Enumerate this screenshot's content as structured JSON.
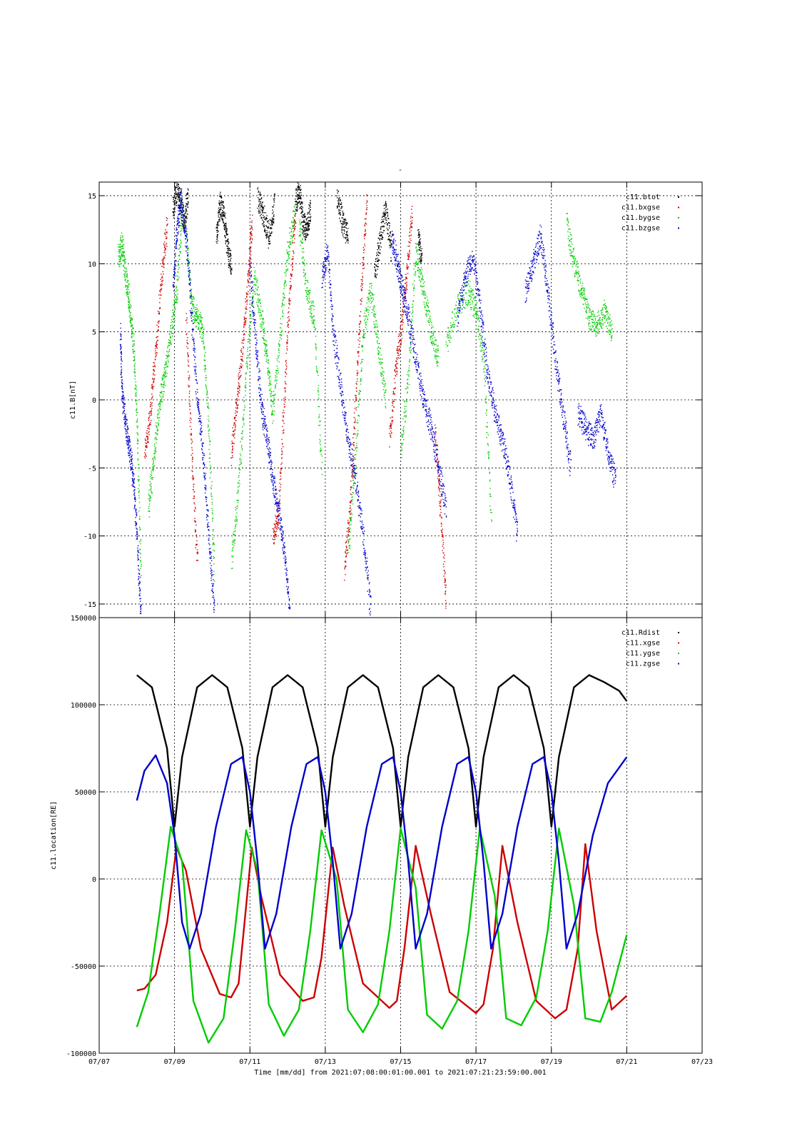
{
  "page_title": "-",
  "xaxis_caption": "Time [mm/dd]  from 2021:07:08:00:01:00.001  to  2021:07:21:23:59:00.001",
  "chart_data": [
    {
      "type": "scatter",
      "ylabel": "c11.B[nT]",
      "ylim": [
        -16,
        16
      ],
      "yticks": [
        -15,
        -10,
        -5,
        0,
        5,
        10,
        15
      ],
      "ytick_labels": [
        "-15",
        "-10",
        "-5",
        "0",
        "5",
        "10",
        "15"
      ],
      "grid": true,
      "legend_position": "top-right",
      "series": [
        {
          "name": "c11.btot",
          "color": "#000000",
          "segments": [
            {
              "x": [
                1.95,
                2.05,
                2.15,
                2.25,
                2.35
              ],
              "y": [
                14.0,
                15.5,
                14.5,
                13.0,
                15.0
              ]
            },
            {
              "x": [
                3.1,
                3.2,
                3.3,
                3.4,
                3.5
              ],
              "y": [
                12.0,
                14.5,
                13.5,
                11.0,
                10.0
              ]
            },
            {
              "x": [
                4.2,
                4.35,
                4.5,
                4.65
              ],
              "y": [
                15.0,
                13.5,
                12.0,
                14.5
              ]
            },
            {
              "x": [
                5.2,
                5.3,
                5.4,
                5.5,
                5.6
              ],
              "y": [
                14.5,
                15.5,
                13.0,
                12.5,
                14.0
              ]
            },
            {
              "x": [
                6.3,
                6.45,
                6.6
              ],
              "y": [
                15.0,
                13.0,
                12.0
              ]
            },
            {
              "x": [
                7.3,
                7.45,
                7.6,
                7.75
              ],
              "y": [
                9.0,
                12.0,
                14.0,
                11.0
              ]
            },
            {
              "x": [
                8.45,
                8.55
              ],
              "y": [
                12.0,
                10.5
              ]
            }
          ]
        },
        {
          "name": "c11.bxgse",
          "color": "#cc0000",
          "segments": [
            {
              "x": [
                1.2,
                1.35,
                1.5,
                1.65,
                1.8
              ],
              "y": [
                -4.0,
                -1.0,
                4.0,
                9.0,
                13.0
              ]
            },
            {
              "x": [
                2.3,
                2.45,
                2.6
              ],
              "y": [
                6.0,
                -4.0,
                -12.0
              ]
            },
            {
              "x": [
                3.5,
                3.65,
                3.8,
                3.95,
                4.05
              ],
              "y": [
                -4.0,
                0.0,
                4.0,
                9.0,
                13.0
              ]
            },
            {
              "x": [
                4.6,
                4.75,
                4.9,
                5.05,
                5.2
              ],
              "y": [
                -10.0,
                -8.5,
                0.0,
                8.0,
                14.0
              ]
            },
            {
              "x": [
                6.5,
                6.65,
                6.8,
                6.95,
                7.1
              ],
              "y": [
                -12.5,
                -8.0,
                0.0,
                8.0,
                15.0
              ]
            },
            {
              "x": [
                7.7,
                7.85,
                8.0,
                8.15,
                8.3
              ],
              "y": [
                -3.0,
                2.0,
                5.0,
                9.0,
                14.0
              ]
            },
            {
              "x": [
                8.9,
                9.05,
                9.2
              ],
              "y": [
                -2.0,
                -8.0,
                -15.0
              ]
            }
          ]
        },
        {
          "name": "c11.bygse",
          "color": "#00cc00",
          "segments": [
            {
              "x": [
                0.5,
                0.6,
                0.7,
                0.8,
                0.9,
                1.0,
                1.1
              ],
              "y": [
                10.5,
                11.5,
                9.0,
                7.0,
                4.0,
                -2.0,
                -13.0
              ]
            },
            {
              "x": [
                1.3,
                1.45,
                1.6,
                1.75,
                1.9,
                2.05,
                2.2
              ],
              "y": [
                -8.0,
                -4.0,
                0.0,
                2.0,
                5.0,
                8.0,
                14.0
              ]
            },
            {
              "x": [
                2.3,
                2.45,
                2.6,
                2.75,
                2.9,
                3.05
              ],
              "y": [
                12.0,
                7.0,
                6.0,
                5.0,
                -2.0,
                -13.0
              ]
            },
            {
              "x": [
                3.5,
                3.7,
                3.9,
                4.1,
                4.3
              ],
              "y": [
                -12.0,
                -6.0,
                2.0,
                9.0,
                6.0
              ]
            },
            {
              "x": [
                4.3,
                4.45,
                4.6,
                4.8,
                5.0,
                5.2
              ],
              "y": [
                6.0,
                3.0,
                -1.0,
                5.0,
                11.0,
                14.0
              ]
            },
            {
              "x": [
                5.3,
                5.5,
                5.7,
                5.9
              ],
              "y": [
                13.0,
                8.0,
                6.0,
                -5.0
              ]
            },
            {
              "x": [
                6.6,
                6.8,
                7.0,
                7.2,
                7.4,
                7.6
              ],
              "y": [
                -11.0,
                -4.0,
                5.0,
                8.0,
                4.0,
                0.0
              ]
            },
            {
              "x": [
                8.0,
                8.2,
                8.4,
                8.6,
                8.8,
                9.0
              ],
              "y": [
                -4.0,
                2.0,
                11.0,
                8.0,
                5.0,
                3.0
              ]
            },
            {
              "x": [
                9.2,
                9.5,
                9.8,
                10.0,
                10.2,
                10.4
              ],
              "y": [
                4.0,
                7.0,
                8.0,
                6.5,
                3.0,
                -9.0
              ]
            },
            {
              "x": [
                12.4,
                12.6,
                12.8,
                13.0,
                13.2,
                13.4,
                13.6
              ],
              "y": [
                13.0,
                10.0,
                8.0,
                6.0,
                5.5,
                6.5,
                5.0
              ]
            }
          ]
        },
        {
          "name": "c11.bzgse",
          "color": "#0000cc",
          "segments": [
            {
              "x": [
                0.55,
                0.6,
                0.7,
                0.8,
                0.9,
                1.0,
                1.1
              ],
              "y": [
                5.0,
                0.5,
                -2.0,
                -3.5,
                -6.0,
                -10.0,
                -16.0
              ]
            },
            {
              "x": [
                1.95,
                2.05,
                2.15,
                2.3,
                2.45,
                2.6,
                2.75,
                2.9,
                3.05
              ],
              "y": [
                8.0,
                12.0,
                15.0,
                12.0,
                6.0,
                0.0,
                -4.0,
                -10.0,
                -15.5
              ]
            },
            {
              "x": [
                4.0,
                4.15,
                4.3,
                4.45,
                4.6,
                4.75,
                4.9,
                5.05
              ],
              "y": [
                10.0,
                4.0,
                -0.5,
                -3.0,
                -6.0,
                -8.0,
                -11.0,
                -15.5
              ]
            },
            {
              "x": [
                5.9,
                6.05,
                6.2,
                6.4,
                6.6,
                6.8,
                7.0,
                7.2
              ],
              "y": [
                9.0,
                11.0,
                5.0,
                1.0,
                -3.0,
                -6.0,
                -10.0,
                -15.5
              ]
            },
            {
              "x": [
                7.75,
                7.9,
                8.05,
                8.2,
                8.4,
                8.6,
                8.8,
                9.0,
                9.2
              ],
              "y": [
                12.0,
                10.0,
                8.0,
                6.0,
                3.0,
                0.0,
                -2.0,
                -5.0,
                -8.0
              ]
            },
            {
              "x": [
                9.5,
                9.7,
                9.9,
                10.1,
                10.3,
                10.5,
                10.7,
                10.9,
                11.1
              ],
              "y": [
                6.0,
                9.0,
                10.5,
                7.0,
                2.0,
                -1.0,
                -3.0,
                -6.0,
                -10.0
              ]
            },
            {
              "x": [
                11.3,
                11.5,
                11.7,
                11.9,
                12.1,
                12.3,
                12.5
              ],
              "y": [
                8.0,
                10.0,
                12.0,
                8.0,
                3.0,
                -1.0,
                -5.0
              ]
            },
            {
              "x": [
                12.7,
                12.9,
                13.1,
                13.3,
                13.5,
                13.7
              ],
              "y": [
                -1.0,
                -2.0,
                -3.0,
                -1.0,
                -4.0,
                -6.0
              ]
            }
          ]
        }
      ]
    },
    {
      "type": "line",
      "ylabel": "c11.location[RE]",
      "ylim": [
        -100000,
        150000
      ],
      "yticks": [
        -100000,
        -50000,
        0,
        50000,
        100000,
        150000
      ],
      "ytick_labels": [
        "-100000",
        "-50000",
        "0",
        "50000",
        "100000",
        "150000"
      ],
      "xlim": [
        "07/07",
        "07/23"
      ],
      "xticks": [
        "07/07",
        "07/09",
        "07/11",
        "07/13",
        "07/15",
        "07/17",
        "07/19",
        "07/21",
        "07/23"
      ],
      "grid": true,
      "legend_position": "top-right",
      "series": [
        {
          "name": "c11.Rdist",
          "color": "#000000",
          "x": [
            1.0,
            1.4,
            1.8,
            2.0,
            2.2,
            2.6,
            3.0,
            3.4,
            3.8,
            4.0,
            4.2,
            4.6,
            5.0,
            5.4,
            5.8,
            6.0,
            6.2,
            6.6,
            7.0,
            7.4,
            7.8,
            8.0,
            8.2,
            8.6,
            9.0,
            9.4,
            9.8,
            10.0,
            10.2,
            10.6,
            11.0,
            11.4,
            11.8,
            12.0,
            12.2,
            12.6,
            13.0,
            13.4,
            13.8,
            14.0
          ],
          "y": [
            117000,
            110000,
            75000,
            30000,
            70000,
            110000,
            117000,
            110000,
            75000,
            30000,
            70000,
            110000,
            117000,
            110000,
            75000,
            30000,
            70000,
            110000,
            117000,
            110000,
            75000,
            30000,
            70000,
            110000,
            117000,
            110000,
            75000,
            30000,
            70000,
            110000,
            117000,
            110000,
            75000,
            30000,
            70000,
            110000,
            117000,
            113000,
            108000,
            102000
          ]
        },
        {
          "name": "c11.xgse",
          "color": "#cc0000",
          "x": [
            1.0,
            1.2,
            1.5,
            1.8,
            2.05,
            2.3,
            2.7,
            3.2,
            3.5,
            3.7,
            4.05,
            4.3,
            4.8,
            5.4,
            5.7,
            5.9,
            6.2,
            6.5,
            7.0,
            7.7,
            7.9,
            8.1,
            8.4,
            8.8,
            9.3,
            10.0,
            10.2,
            10.45,
            10.7,
            11.1,
            11.6,
            12.1,
            12.4,
            12.7,
            12.9,
            13.2,
            13.6,
            14.0
          ],
          "y": [
            -64000,
            -63000,
            -55000,
            -25000,
            18000,
            5000,
            -40000,
            -66000,
            -68000,
            -60000,
            18000,
            -10000,
            -55000,
            -70000,
            -68000,
            -45000,
            18000,
            -15000,
            -60000,
            -74000,
            -70000,
            -40000,
            19000,
            -20000,
            -65000,
            -77000,
            -72000,
            -40000,
            19000,
            -25000,
            -70000,
            -80000,
            -75000,
            -40000,
            20000,
            -30000,
            -75000,
            -67000
          ]
        },
        {
          "name": "c11.ygse",
          "color": "#00cc00",
          "x": [
            1.0,
            1.3,
            1.6,
            1.9,
            2.2,
            2.5,
            2.9,
            3.3,
            3.6,
            3.9,
            4.2,
            4.5,
            4.9,
            5.3,
            5.6,
            5.9,
            6.3,
            6.6,
            7.0,
            7.4,
            7.7,
            8.0,
            8.4,
            8.7,
            9.1,
            9.5,
            9.8,
            10.1,
            10.5,
            10.8,
            11.2,
            11.6,
            11.9,
            12.2,
            12.6,
            12.9,
            13.3,
            13.6,
            14.0
          ],
          "y": [
            -85000,
            -65000,
            -20000,
            30000,
            10000,
            -70000,
            -94000,
            -80000,
            -30000,
            28000,
            5000,
            -72000,
            -90000,
            -75000,
            -30000,
            28000,
            0,
            -75000,
            -88000,
            -72000,
            -30000,
            29000,
            -5000,
            -78000,
            -86000,
            -70000,
            -30000,
            29000,
            -10000,
            -80000,
            -84000,
            -68000,
            -30000,
            29000,
            -15000,
            -80000,
            -82000,
            -65000,
            -32000
          ]
        },
        {
          "name": "c11.zgse",
          "color": "#0000cc",
          "x": [
            1.0,
            1.2,
            1.5,
            1.8,
            2.0,
            2.2,
            2.4,
            2.7,
            3.1,
            3.5,
            3.8,
            4.0,
            4.2,
            4.4,
            4.7,
            5.1,
            5.5,
            5.8,
            6.0,
            6.2,
            6.4,
            6.7,
            7.1,
            7.5,
            7.8,
            8.0,
            8.2,
            8.4,
            8.7,
            9.1,
            9.5,
            9.8,
            10.0,
            10.2,
            10.4,
            10.7,
            11.1,
            11.5,
            11.8,
            12.0,
            12.2,
            12.4,
            12.7,
            13.1,
            13.5,
            14.0
          ],
          "y": [
            45000,
            62000,
            71000,
            55000,
            25000,
            -25000,
            -40000,
            -20000,
            30000,
            66000,
            70000,
            50000,
            10000,
            -40000,
            -20000,
            30000,
            66000,
            70000,
            50000,
            10000,
            -40000,
            -20000,
            30000,
            66000,
            70000,
            50000,
            10000,
            -40000,
            -20000,
            30000,
            66000,
            70000,
            50000,
            10000,
            -40000,
            -20000,
            30000,
            66000,
            70000,
            50000,
            10000,
            -40000,
            -20000,
            25000,
            55000,
            70000
          ]
        }
      ]
    }
  ]
}
